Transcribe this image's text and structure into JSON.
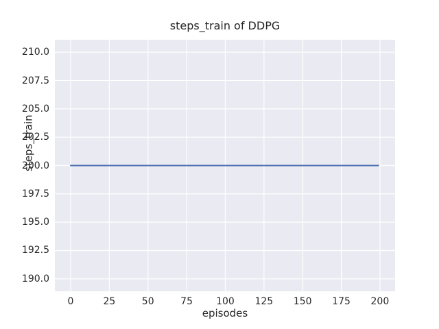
{
  "chart_data": {
    "type": "line",
    "title": "steps_train of DDPG",
    "xlabel": "episodes",
    "ylabel": "steps_train",
    "xlim": [
      -10.2,
      209.8
    ],
    "ylim": [
      188.9,
      211.1
    ],
    "x_ticks": [
      0,
      25,
      50,
      75,
      100,
      125,
      150,
      175,
      200
    ],
    "x_tick_labels": [
      "0",
      "25",
      "50",
      "75",
      "100",
      "125",
      "150",
      "175",
      "200"
    ],
    "y_ticks": [
      190.0,
      192.5,
      195.0,
      197.5,
      200.0,
      202.5,
      205.0,
      207.5,
      210.0
    ],
    "y_tick_labels": [
      "190.0",
      "192.5",
      "195.0",
      "197.5",
      "200.0",
      "202.5",
      "205.0",
      "207.5",
      "210.0"
    ],
    "grid": true,
    "legend": "none",
    "series": [
      {
        "name": "steps_train",
        "color": "#4c72b0",
        "points": [
          [
            0,
            200
          ],
          [
            199,
            200
          ]
        ]
      }
    ],
    "colors": {
      "figure_background": "#ffffff",
      "axes_background": "#eaeaf2",
      "gridline": "#ffffff",
      "text": "#262626",
      "line": "#4c72b0"
    }
  }
}
